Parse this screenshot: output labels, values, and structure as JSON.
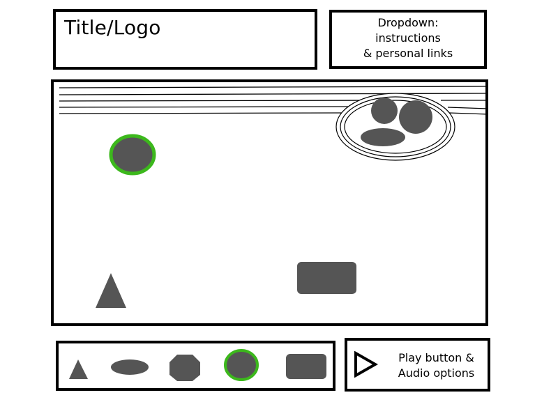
{
  "header": {
    "title": "Title/Logo",
    "dropdown_label": "Dropdown:\ninstructions\n& personal links"
  },
  "scene": {
    "shape_fill": "#555555",
    "highlight_color": "#3cb81c",
    "shapes": [
      "avatar-group-icon",
      "highlighted-circle-shape",
      "triangle-shape",
      "rounded-rectangle-shape"
    ]
  },
  "toolbar": {
    "shapes": [
      "triangle-shape",
      "ellipse-shape",
      "octagon-shape",
      "circle-shape",
      "rounded-rectangle-shape"
    ],
    "selected": "circle-shape"
  },
  "player": {
    "label": "Play button &\nAudio options",
    "icon": "play-icon"
  }
}
